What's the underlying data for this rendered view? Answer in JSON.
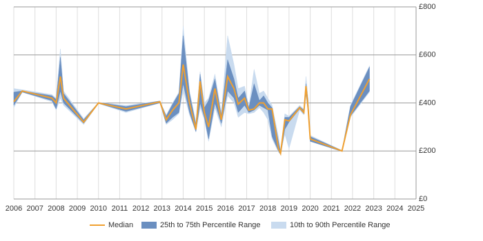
{
  "chart_data": {
    "type": "range-line",
    "x": [
      2006.0,
      2006.4,
      2007.8,
      2008.0,
      2008.2,
      2008.35,
      2009.3,
      2010.0,
      2011.3,
      2012.9,
      2013.2,
      2013.5,
      2013.8,
      2014.0,
      2014.3,
      2014.6,
      2014.8,
      2015.0,
      2015.2,
      2015.5,
      2015.8,
      2016.1,
      2016.4,
      2016.6,
      2016.9,
      2017.1,
      2017.35,
      2017.6,
      2017.8,
      2018.0,
      2018.2,
      2018.5,
      2018.6,
      2018.8,
      2019.0,
      2019.5,
      2019.7,
      2019.8,
      2019.9,
      2020.0,
      2021.5,
      2021.9,
      2022.8
    ],
    "series": [
      {
        "name": "Median",
        "color": "#f0a030",
        "values": [
          405,
          450,
          420,
          400,
          510,
          420,
          320,
          400,
          375,
          405,
          330,
          370,
          400,
          560,
          400,
          290,
          490,
          360,
          300,
          460,
          330,
          510,
          460,
          395,
          420,
          370,
          375,
          400,
          400,
          375,
          375,
          210,
          190,
          330,
          325,
          380,
          360,
          470,
          380,
          250,
          200,
          350,
          500
        ]
      },
      {
        "name": "25th to 75th Percentile Range",
        "color": "#6b8fc0",
        "low": [
          390,
          445,
          410,
          375,
          450,
          400,
          315,
          398,
          365,
          400,
          315,
          340,
          360,
          480,
          360,
          280,
          400,
          340,
          250,
          400,
          315,
          450,
          420,
          360,
          390,
          360,
          370,
          390,
          380,
          370,
          260,
          200,
          185,
          290,
          320,
          375,
          355,
          440,
          370,
          240,
          198,
          345,
          450
        ],
        "high": [
          445,
          450,
          430,
          415,
          590,
          440,
          330,
          402,
          385,
          408,
          345,
          395,
          440,
          680,
          440,
          310,
          520,
          380,
          410,
          500,
          350,
          580,
          500,
          420,
          450,
          380,
          480,
          410,
          430,
          400,
          380,
          240,
          195,
          340,
          340,
          385,
          370,
          480,
          410,
          260,
          202,
          385,
          550
        ]
      },
      {
        "name": "10th to 90th Percentile Range",
        "color": "#c9dbef",
        "low": [
          380,
          445,
          405,
          370,
          420,
          390,
          310,
          398,
          360,
          400,
          310,
          330,
          355,
          450,
          350,
          280,
          380,
          330,
          240,
          380,
          300,
          430,
          400,
          340,
          360,
          355,
          360,
          380,
          360,
          330,
          250,
          195,
          185,
          270,
          210,
          370,
          350,
          430,
          360,
          240,
          198,
          340,
          445
        ],
        "high": [
          460,
          455,
          435,
          420,
          625,
          450,
          335,
          402,
          390,
          408,
          350,
          400,
          445,
          720,
          450,
          320,
          530,
          400,
          420,
          520,
          360,
          680,
          560,
          460,
          470,
          385,
          540,
          440,
          450,
          420,
          390,
          260,
          200,
          355,
          345,
          390,
          375,
          510,
          420,
          265,
          202,
          390,
          555
        ]
      }
    ],
    "xlim": [
      2006,
      2025
    ],
    "xticks": [
      2006,
      2007,
      2008,
      2009,
      2010,
      2011,
      2012,
      2013,
      2014,
      2015,
      2016,
      2017,
      2018,
      2019,
      2020,
      2021,
      2022,
      2023,
      2024,
      2025
    ],
    "ylim": [
      0,
      800
    ],
    "yticks": [
      {
        "value": 0,
        "label": "£0"
      },
      {
        "value": 200,
        "label": "£200"
      },
      {
        "value": 400,
        "label": "£400"
      },
      {
        "value": 600,
        "label": "£600"
      },
      {
        "value": 800,
        "label": "£800"
      }
    ],
    "grid": true,
    "legend": "bottom"
  }
}
